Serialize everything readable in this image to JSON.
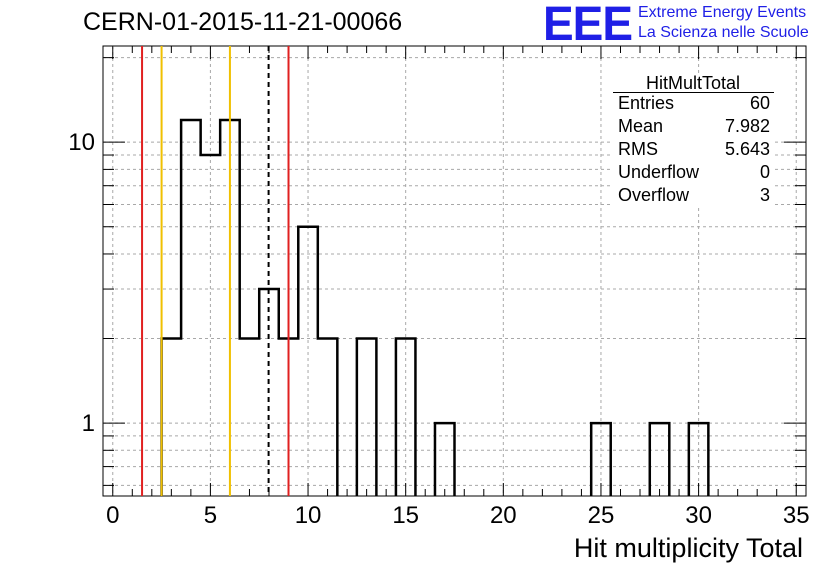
{
  "run_title": "CERN-01-2015-11-21-00066",
  "logo": {
    "acronym": "EEE",
    "line1": "Extreme Energy Events",
    "line2": "La Scienza nelle Scuole",
    "color": "#1f1fe6"
  },
  "stats_box": {
    "title": "HitMultTotal",
    "rows": [
      {
        "label": "Entries",
        "value": "60"
      },
      {
        "label": "Mean",
        "value": "7.982"
      },
      {
        "label": "RMS",
        "value": "5.643"
      },
      {
        "label": "Underflow",
        "value": "0"
      },
      {
        "label": "Overflow",
        "value": "3"
      }
    ]
  },
  "chart_data": {
    "type": "histogram",
    "xlabel": "Hit multiplicity Total",
    "ylabel": "",
    "xlim": [
      -0.5,
      35.5
    ],
    "ylim": [
      0.55,
      22
    ],
    "yscale": "log",
    "grid": true,
    "bin_width": 1,
    "x_ticks": [
      0,
      5,
      10,
      15,
      20,
      25,
      30,
      35
    ],
    "x_tick_labels": [
      "0",
      "5",
      "10",
      "15",
      "20",
      "25",
      "30",
      "35"
    ],
    "y_ticks": [
      1,
      10
    ],
    "y_tick_labels": [
      "1",
      "10"
    ],
    "bins": [
      {
        "x": 3,
        "count": 2
      },
      {
        "x": 4,
        "count": 12
      },
      {
        "x": 5,
        "count": 9
      },
      {
        "x": 6,
        "count": 12
      },
      {
        "x": 7,
        "count": 2
      },
      {
        "x": 8,
        "count": 3
      },
      {
        "x": 9,
        "count": 2
      },
      {
        "x": 10,
        "count": 5
      },
      {
        "x": 11,
        "count": 2
      },
      {
        "x": 13,
        "count": 2
      },
      {
        "x": 15,
        "count": 2
      },
      {
        "x": 17,
        "count": 1
      },
      {
        "x": 25,
        "count": 1
      },
      {
        "x": 28,
        "count": 1
      },
      {
        "x": 30,
        "count": 1
      }
    ],
    "vertical_lines": [
      {
        "x": 1.5,
        "color": "#e02020",
        "style": "solid"
      },
      {
        "x": 2.5,
        "color": "#f0c000",
        "style": "solid"
      },
      {
        "x": 6.0,
        "color": "#f0c000",
        "style": "solid"
      },
      {
        "x": 7.98,
        "color": "#000000",
        "style": "dashed"
      },
      {
        "x": 9.0,
        "color": "#e02020",
        "style": "solid"
      }
    ]
  }
}
